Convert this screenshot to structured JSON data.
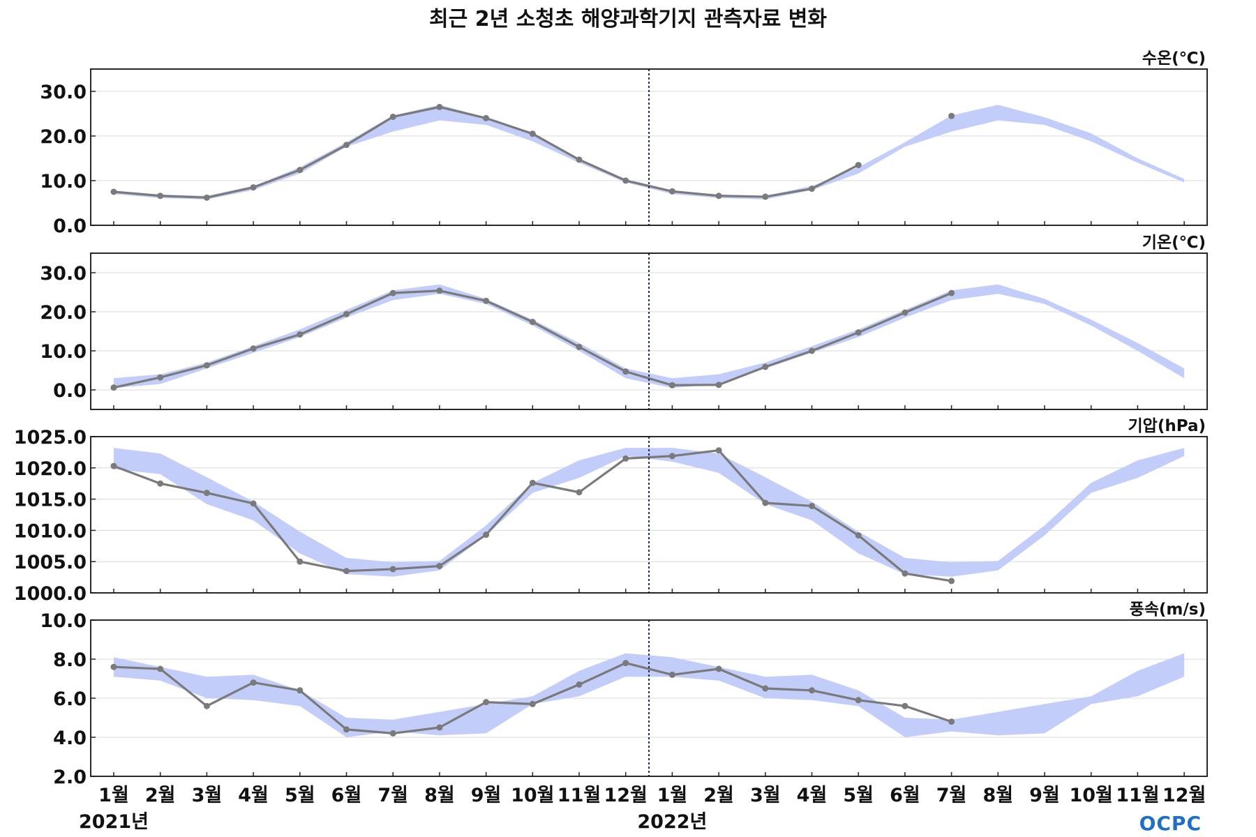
{
  "title": "최근 2년 소청초 해양과학기지 관측자료 변화",
  "x_labels": [
    "1월",
    "2월",
    "3월",
    "4월",
    "5월",
    "6월",
    "7월",
    "8월",
    "9월",
    "10월",
    "11월",
    "12월",
    "1월",
    "2월",
    "3월",
    "4월",
    "5월",
    "6월",
    "7월",
    "8월",
    "9월",
    "10월",
    "11월",
    "12월"
  ],
  "year_labels": [
    "2021년",
    "2022년"
  ],
  "logo": "OCPC",
  "colors": {
    "band": "#c3cdfa",
    "line": "#7a7a7a",
    "divider": "#1c2a5a",
    "grid": "#d8d8d8"
  },
  "chart_data": [
    {
      "type": "line",
      "label": "수온(℃)",
      "ylim": [
        0,
        35
      ],
      "yticks": [
        "0.0",
        "10.0",
        "20.0",
        "30.0"
      ],
      "ytick_values": [
        0,
        10,
        20,
        30
      ],
      "band_lower": [
        7.0,
        6.1,
        5.8,
        7.9,
        11.6,
        17.6,
        21.0,
        23.5,
        22.5,
        18.8,
        14.0,
        9.6,
        7.0,
        6.1,
        5.8,
        7.9,
        11.6,
        17.6,
        21.0,
        23.5,
        22.5,
        18.8,
        14.0,
        9.6
      ],
      "band_upper": [
        7.8,
        6.9,
        6.6,
        8.8,
        13.0,
        18.6,
        24.6,
        27.0,
        24.2,
        20.6,
        15.0,
        10.4,
        7.8,
        6.9,
        6.6,
        8.8,
        13.0,
        18.6,
        24.6,
        27.0,
        24.2,
        20.6,
        15.0,
        10.4
      ],
      "series": [
        {
          "values": [
            7.5,
            6.6,
            6.2,
            8.5,
            12.4,
            18.0,
            24.3,
            26.5,
            24.0,
            20.5,
            14.7,
            10.0,
            7.6,
            6.6,
            6.4,
            8.2,
            13.5,
            null,
            24.5,
            null,
            null,
            null,
            null,
            null
          ]
        }
      ]
    },
    {
      "type": "line",
      "label": "기온(℃)",
      "ylim": [
        -5,
        35
      ],
      "yticks": [
        "0.0",
        "10.0",
        "20.0",
        "30.0"
      ],
      "ytick_values": [
        0,
        10,
        20,
        30
      ],
      "band_lower": [
        0.5,
        1.5,
        5.5,
        9.5,
        13.5,
        18.5,
        23.0,
        24.6,
        22.0,
        16.5,
        10.0,
        3.0,
        0.5,
        1.5,
        5.5,
        9.5,
        13.5,
        18.5,
        23.0,
        24.6,
        22.0,
        16.5,
        10.0,
        3.0
      ],
      "band_upper": [
        3.0,
        4.0,
        7.0,
        11.2,
        15.5,
        20.5,
        25.5,
        27.0,
        23.3,
        18.0,
        12.0,
        5.5,
        3.0,
        4.0,
        7.0,
        11.2,
        15.5,
        20.5,
        25.5,
        27.0,
        23.3,
        18.0,
        12.0,
        5.5
      ],
      "series": [
        {
          "values": [
            0.6,
            3.2,
            6.3,
            10.6,
            14.2,
            19.4,
            24.8,
            25.4,
            22.8,
            17.4,
            11.0,
            4.7,
            1.2,
            1.3,
            5.9,
            10.0,
            14.7,
            19.8,
            24.8,
            null,
            null,
            null,
            null,
            null
          ]
        }
      ]
    },
    {
      "type": "line",
      "label": "기압(hPa)",
      "ylim": [
        1000,
        1025
      ],
      "yticks": [
        "1000.0",
        "1005.0",
        "1010.0",
        "1015.0",
        "1020.0",
        "1025.0"
      ],
      "ytick_values": [
        1000,
        1005,
        1010,
        1015,
        1020,
        1025
      ],
      "band_lower": [
        1019.8,
        1019.0,
        1014.2,
        1011.6,
        1006.3,
        1003.0,
        1002.6,
        1003.6,
        1009.2,
        1016.0,
        1018.4,
        1021.9,
        1021.0,
        1019.2,
        1014.2,
        1011.6,
        1006.3,
        1003.0,
        1002.6,
        1003.6,
        1009.2,
        1016.0,
        1018.4,
        1021.9
      ],
      "band_upper": [
        1023.2,
        1022.3,
        1018.5,
        1014.6,
        1009.8,
        1005.6,
        1004.9,
        1005.1,
        1010.8,
        1017.6,
        1021.2,
        1023.2,
        1023.2,
        1022.3,
        1018.5,
        1014.6,
        1009.8,
        1005.6,
        1004.9,
        1005.1,
        1010.8,
        1017.6,
        1021.2,
        1023.2
      ],
      "series": [
        {
          "values": [
            1020.3,
            1017.5,
            1016.0,
            1014.3,
            1005.0,
            1003.5,
            1003.8,
            1004.3,
            1009.3,
            1017.6,
            1016.1,
            1021.5,
            1021.9,
            1022.8,
            1014.4,
            1013.9,
            1009.2,
            1003.1,
            1001.9,
            null,
            null,
            null,
            null,
            null
          ]
        }
      ]
    },
    {
      "type": "line",
      "label": "풍속(m/s)",
      "ylim": [
        2,
        10
      ],
      "yticks": [
        "2.0",
        "4.0",
        "6.0",
        "8.0",
        "10.0"
      ],
      "ytick_values": [
        2,
        4,
        6,
        8,
        10
      ],
      "band_lower": [
        7.1,
        6.9,
        6.0,
        5.9,
        5.6,
        4.0,
        4.3,
        4.1,
        4.2,
        5.7,
        6.1,
        7.1,
        7.1,
        6.9,
        6.0,
        5.9,
        5.6,
        4.0,
        4.3,
        4.1,
        4.2,
        5.7,
        6.1,
        7.1
      ],
      "band_upper": [
        8.1,
        7.6,
        7.1,
        7.2,
        6.4,
        5.0,
        4.9,
        5.3,
        5.7,
        6.1,
        7.4,
        8.3,
        8.1,
        7.6,
        7.1,
        7.2,
        6.4,
        5.0,
        4.9,
        5.3,
        5.7,
        6.1,
        7.4,
        8.3
      ],
      "series": [
        {
          "values": [
            7.6,
            7.5,
            5.6,
            6.8,
            6.4,
            4.4,
            4.2,
            4.5,
            5.8,
            5.7,
            6.7,
            7.8,
            7.2,
            7.5,
            6.5,
            6.4,
            5.9,
            5.6,
            4.8,
            null,
            null,
            null,
            null,
            null
          ]
        }
      ]
    }
  ]
}
